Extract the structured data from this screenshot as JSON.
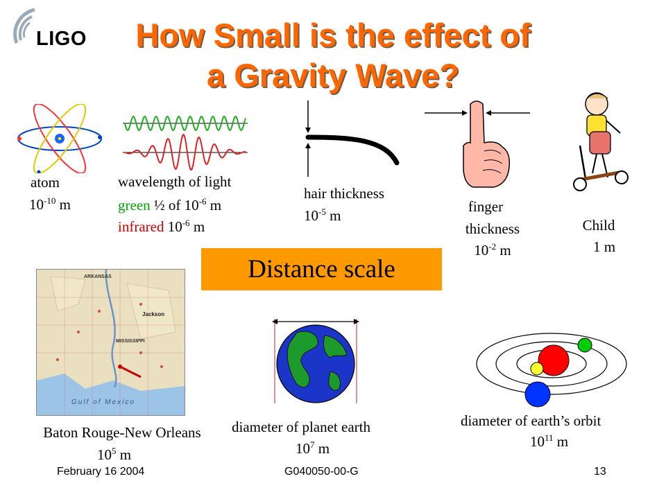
{
  "logo": {
    "text": "LIGO"
  },
  "title": {
    "line1": "How Small is the effect of",
    "line2": "a Gravity Wave?"
  },
  "atom": {
    "label": "atom",
    "value": "10",
    "exp": "-10",
    "unit": " m"
  },
  "light": {
    "label": "wavelength of light",
    "green_word": "green",
    "green_rest_a": "  ½ of 10",
    "green_exp": "-6",
    "green_unit": " m",
    "infrared_word": "infrared",
    "infrared_rest": " 10",
    "infrared_exp": "-6",
    "infrared_unit": " m",
    "green_color": "#00aa00",
    "infrared_color": "#cc0000"
  },
  "hair": {
    "label": "hair thickness",
    "value": "10",
    "exp": "-5",
    "unit": " m"
  },
  "finger": {
    "label1": "finger",
    "label2": "thickness",
    "value": "10",
    "exp": "-2",
    "unit": " m"
  },
  "child": {
    "label": "Child",
    "value": "1 m"
  },
  "distance_scale": {
    "label": "Distance scale",
    "color": "#ff9900"
  },
  "map": {
    "states": [
      "ARKANSAS",
      "MISSISSIPPI"
    ],
    "water": "Gulf of Mexico",
    "city": "Jackson",
    "label": "Baton Rouge-New Orleans",
    "value": "10",
    "exp": "5",
    "unit": "  m"
  },
  "earth": {
    "label": "diameter of planet earth",
    "value": "10",
    "exp": "7",
    "unit": " m"
  },
  "orbit": {
    "label": "diameter of  earth’s orbit",
    "value": "10",
    "exp": "11",
    "unit": " m"
  },
  "footer": {
    "date": "February 16 2004",
    "code": "G040050-00-G",
    "page": "13"
  },
  "colors": {
    "title": "#ff6600",
    "orbit_sun": "#ff0000",
    "orbit_earth": "#00cc00",
    "orbit_planet": "#0033ff",
    "moon": "#ffff33"
  }
}
